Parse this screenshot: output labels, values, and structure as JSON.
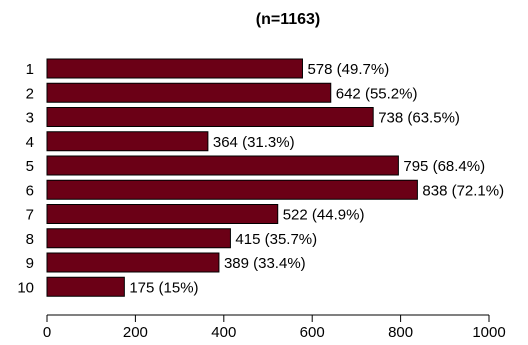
{
  "chart_data": {
    "type": "bar",
    "orientation": "horizontal",
    "title": "(n=1163)",
    "categories": [
      "1",
      "2",
      "3",
      "4",
      "5",
      "6",
      "7",
      "8",
      "9",
      "10"
    ],
    "values": [
      578,
      642,
      738,
      364,
      795,
      838,
      522,
      415,
      389,
      175
    ],
    "data_labels": [
      "578 (49.7%)",
      "642 (55.2%)",
      "738 (63.5%)",
      "364 (31.3%)",
      "795 (68.4%)",
      "838 (72.1%)",
      "522 (44.9%)",
      "415 (35.7%)",
      "389 (33.4%)",
      "175 (15%)"
    ],
    "xlim": [
      0,
      1000
    ],
    "xticks": [
      0,
      200,
      400,
      600,
      800,
      1000
    ],
    "xtick_labels": [
      "0",
      "200",
      "400",
      "600",
      "800",
      "1000"
    ],
    "grid": false,
    "legend": "none",
    "colors": {
      "bar_fill": "#6b0016",
      "bar_stroke": "#000000",
      "axis": "#000000",
      "text": "#000000"
    }
  }
}
